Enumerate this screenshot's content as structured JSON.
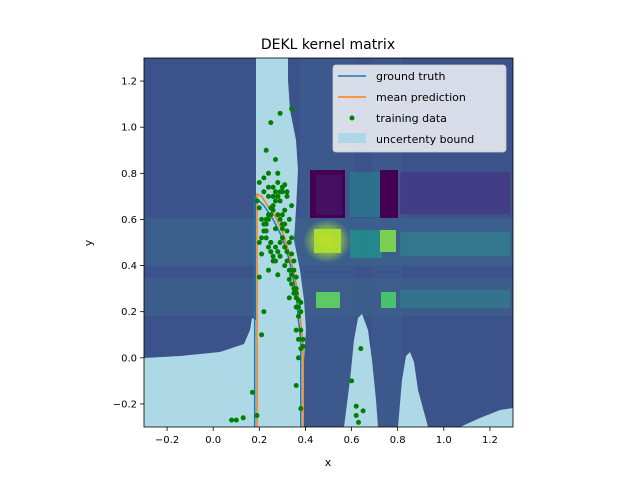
{
  "chart_data": {
    "type": "heatmap",
    "title": "DEKL kernel matrix",
    "xlabel": "x",
    "ylabel": "y",
    "xlim": [
      -0.3,
      1.3
    ],
    "ylim": [
      -0.3,
      1.3
    ],
    "xticks": [
      "−0.2",
      "0.0",
      "0.2",
      "0.4",
      "0.6",
      "0.8",
      "1.0",
      "1.2"
    ],
    "xtick_values": [
      -0.2,
      0.0,
      0.2,
      0.4,
      0.6,
      0.8,
      1.0,
      1.2
    ],
    "yticks": [
      "−0.2",
      "0.0",
      "0.2",
      "0.4",
      "0.6",
      "0.8",
      "1.0",
      "1.2"
    ],
    "ytick_values": [
      -0.2,
      0.0,
      0.2,
      0.4,
      0.6,
      0.8,
      1.0,
      1.2
    ],
    "grid": false,
    "legend_placement": "upper right",
    "colormap": "viridis",
    "colors": {
      "ground_truth": "#1f77b4",
      "mean_prediction": "#ff7f0e",
      "training_data": "#007f00",
      "uncertainty_bound": "#add8e6",
      "background": "#3b528b"
    },
    "heatmap": {
      "bright_cells": [
        {
          "x": 0.5,
          "y": 0.5,
          "level": "high"
        },
        {
          "x": 0.77,
          "y": 0.5,
          "level": "medium-high"
        },
        {
          "x": 0.5,
          "y": 0.25,
          "level": "medium"
        },
        {
          "x": 0.77,
          "y": 0.25,
          "level": "medium"
        }
      ],
      "dark_bands_x": [
        0.5,
        0.77
      ],
      "dark_bands_y": [
        0.72,
        0.6
      ]
    },
    "series": [
      {
        "name": "ground truth",
        "type": "line",
        "x": [
          0.18,
          0.18,
          0.2,
          0.22,
          0.24,
          0.26,
          0.28,
          0.3,
          0.32,
          0.34,
          0.36,
          0.37,
          0.38,
          0.38
        ],
        "y": [
          -0.3,
          0.7,
          0.68,
          0.66,
          0.63,
          0.6,
          0.56,
          0.52,
          0.46,
          0.38,
          0.28,
          0.16,
          0.08,
          -0.3
        ]
      },
      {
        "name": "mean prediction",
        "type": "line",
        "x": [
          0.19,
          0.19,
          0.21,
          0.23,
          0.25,
          0.27,
          0.29,
          0.31,
          0.33,
          0.35,
          0.37,
          0.38,
          0.39,
          0.39
        ],
        "y": [
          -0.3,
          0.71,
          0.7,
          0.67,
          0.64,
          0.61,
          0.57,
          0.52,
          0.45,
          0.37,
          0.27,
          0.15,
          0.06,
          -0.3
        ]
      },
      {
        "name": "training data",
        "type": "scatter",
        "x": [
          0.08,
          0.1,
          0.13,
          0.17,
          0.19,
          0.2,
          0.21,
          0.22,
          0.23,
          0.24,
          0.25,
          0.26,
          0.27,
          0.28,
          0.29,
          0.3,
          0.31,
          0.32,
          0.33,
          0.34,
          0.35,
          0.36,
          0.37,
          0.38,
          0.39,
          0.2,
          0.21,
          0.22,
          0.23,
          0.24,
          0.25,
          0.26,
          0.27,
          0.28,
          0.29,
          0.3,
          0.31,
          0.32,
          0.33,
          0.34,
          0.35,
          0.36,
          0.37,
          0.38,
          0.19,
          0.2,
          0.21,
          0.22,
          0.23,
          0.24,
          0.25,
          0.26,
          0.27,
          0.28,
          0.29,
          0.3,
          0.31,
          0.32,
          0.33,
          0.34,
          0.35,
          0.36,
          0.37,
          0.2,
          0.22,
          0.24,
          0.26,
          0.28,
          0.3,
          0.32,
          0.34,
          0.36,
          0.38,
          0.23,
          0.25,
          0.27,
          0.29,
          0.31,
          0.33,
          0.35,
          0.37,
          0.22,
          0.24,
          0.26,
          0.28,
          0.3,
          0.32,
          0.34,
          0.36,
          0.25,
          0.27,
          0.29,
          0.31,
          0.24,
          0.26,
          0.28,
          0.3,
          0.33,
          0.36,
          0.23,
          0.27,
          0.25,
          0.29,
          0.34,
          0.21,
          0.22,
          0.24,
          0.26,
          0.28,
          0.38,
          0.37,
          0.36,
          0.38,
          0.39,
          0.6,
          0.62,
          0.63,
          0.64,
          0.65,
          0.62
        ],
        "y": [
          -0.27,
          -0.27,
          -0.26,
          -0.15,
          -0.25,
          0.35,
          0.45,
          0.55,
          0.6,
          0.62,
          0.65,
          0.7,
          0.72,
          0.7,
          0.68,
          0.62,
          0.58,
          0.55,
          0.5,
          0.45,
          0.38,
          0.3,
          0.22,
          0.12,
          0.05,
          0.5,
          0.52,
          0.55,
          0.58,
          0.6,
          0.62,
          0.66,
          0.68,
          0.7,
          0.72,
          0.74,
          0.75,
          0.72,
          0.6,
          0.52,
          0.42,
          0.35,
          0.25,
          0.2,
          0.68,
          0.65,
          0.6,
          0.58,
          0.52,
          0.48,
          0.46,
          0.44,
          0.42,
          0.46,
          0.5,
          0.52,
          0.48,
          0.42,
          0.38,
          0.32,
          0.28,
          0.22,
          0.18,
          0.76,
          0.78,
          0.8,
          0.74,
          0.76,
          0.72,
          0.7,
          0.66,
          0.28,
          0.24,
          0.55,
          0.5,
          0.48,
          0.44,
          0.4,
          0.34,
          0.3,
          0.08,
          0.72,
          0.7,
          0.64,
          0.62,
          0.56,
          0.46,
          0.36,
          0.26,
          0.5,
          0.56,
          0.6,
          0.64,
          0.74,
          0.7,
          0.8,
          0.58,
          0.26,
          0.12,
          0.9,
          0.86,
          1.02,
          1.06,
          1.08,
          0.1,
          0.2,
          0.38,
          0.42,
          0.36,
          0.04,
          0.0,
          -0.12,
          -0.22,
          0.08,
          -0.1,
          -0.21,
          -0.28,
          0.04,
          -0.23,
          -0.25
        ]
      },
      {
        "name": "uncertenty bound",
        "type": "area"
      }
    ]
  }
}
